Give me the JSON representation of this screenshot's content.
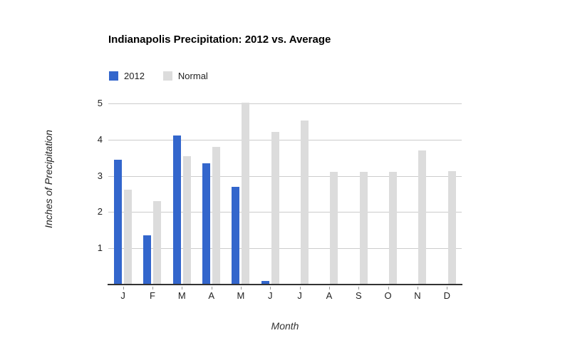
{
  "chart_data": {
    "type": "bar",
    "title": "Indianapolis Precipitation: 2012 vs. Average",
    "xlabel": "Month",
    "ylabel": "Inches of Precipitation",
    "categories": [
      "J",
      "F",
      "M",
      "A",
      "M",
      "J",
      "J",
      "A",
      "S",
      "O",
      "N",
      "D"
    ],
    "series": [
      {
        "name": "2012",
        "color": "#3366CC",
        "values": [
          3.45,
          1.35,
          4.11,
          3.35,
          2.69,
          0.1,
          null,
          null,
          null,
          null,
          null,
          null
        ]
      },
      {
        "name": "Normal",
        "color": "#DCDCDC",
        "values": [
          2.62,
          2.3,
          3.55,
          3.8,
          5.03,
          4.22,
          4.53,
          3.12,
          3.12,
          3.12,
          3.7,
          3.13
        ]
      }
    ],
    "yticks": [
      1,
      2,
      3,
      4,
      5
    ],
    "ylim": [
      0,
      5.2
    ],
    "grid": true,
    "legend_position": "top-left",
    "colors": {
      "gridline": "#CCCCCC",
      "axis_line": "#333333",
      "tick": "#999999",
      "text": "#222222",
      "title": "#000000"
    }
  }
}
